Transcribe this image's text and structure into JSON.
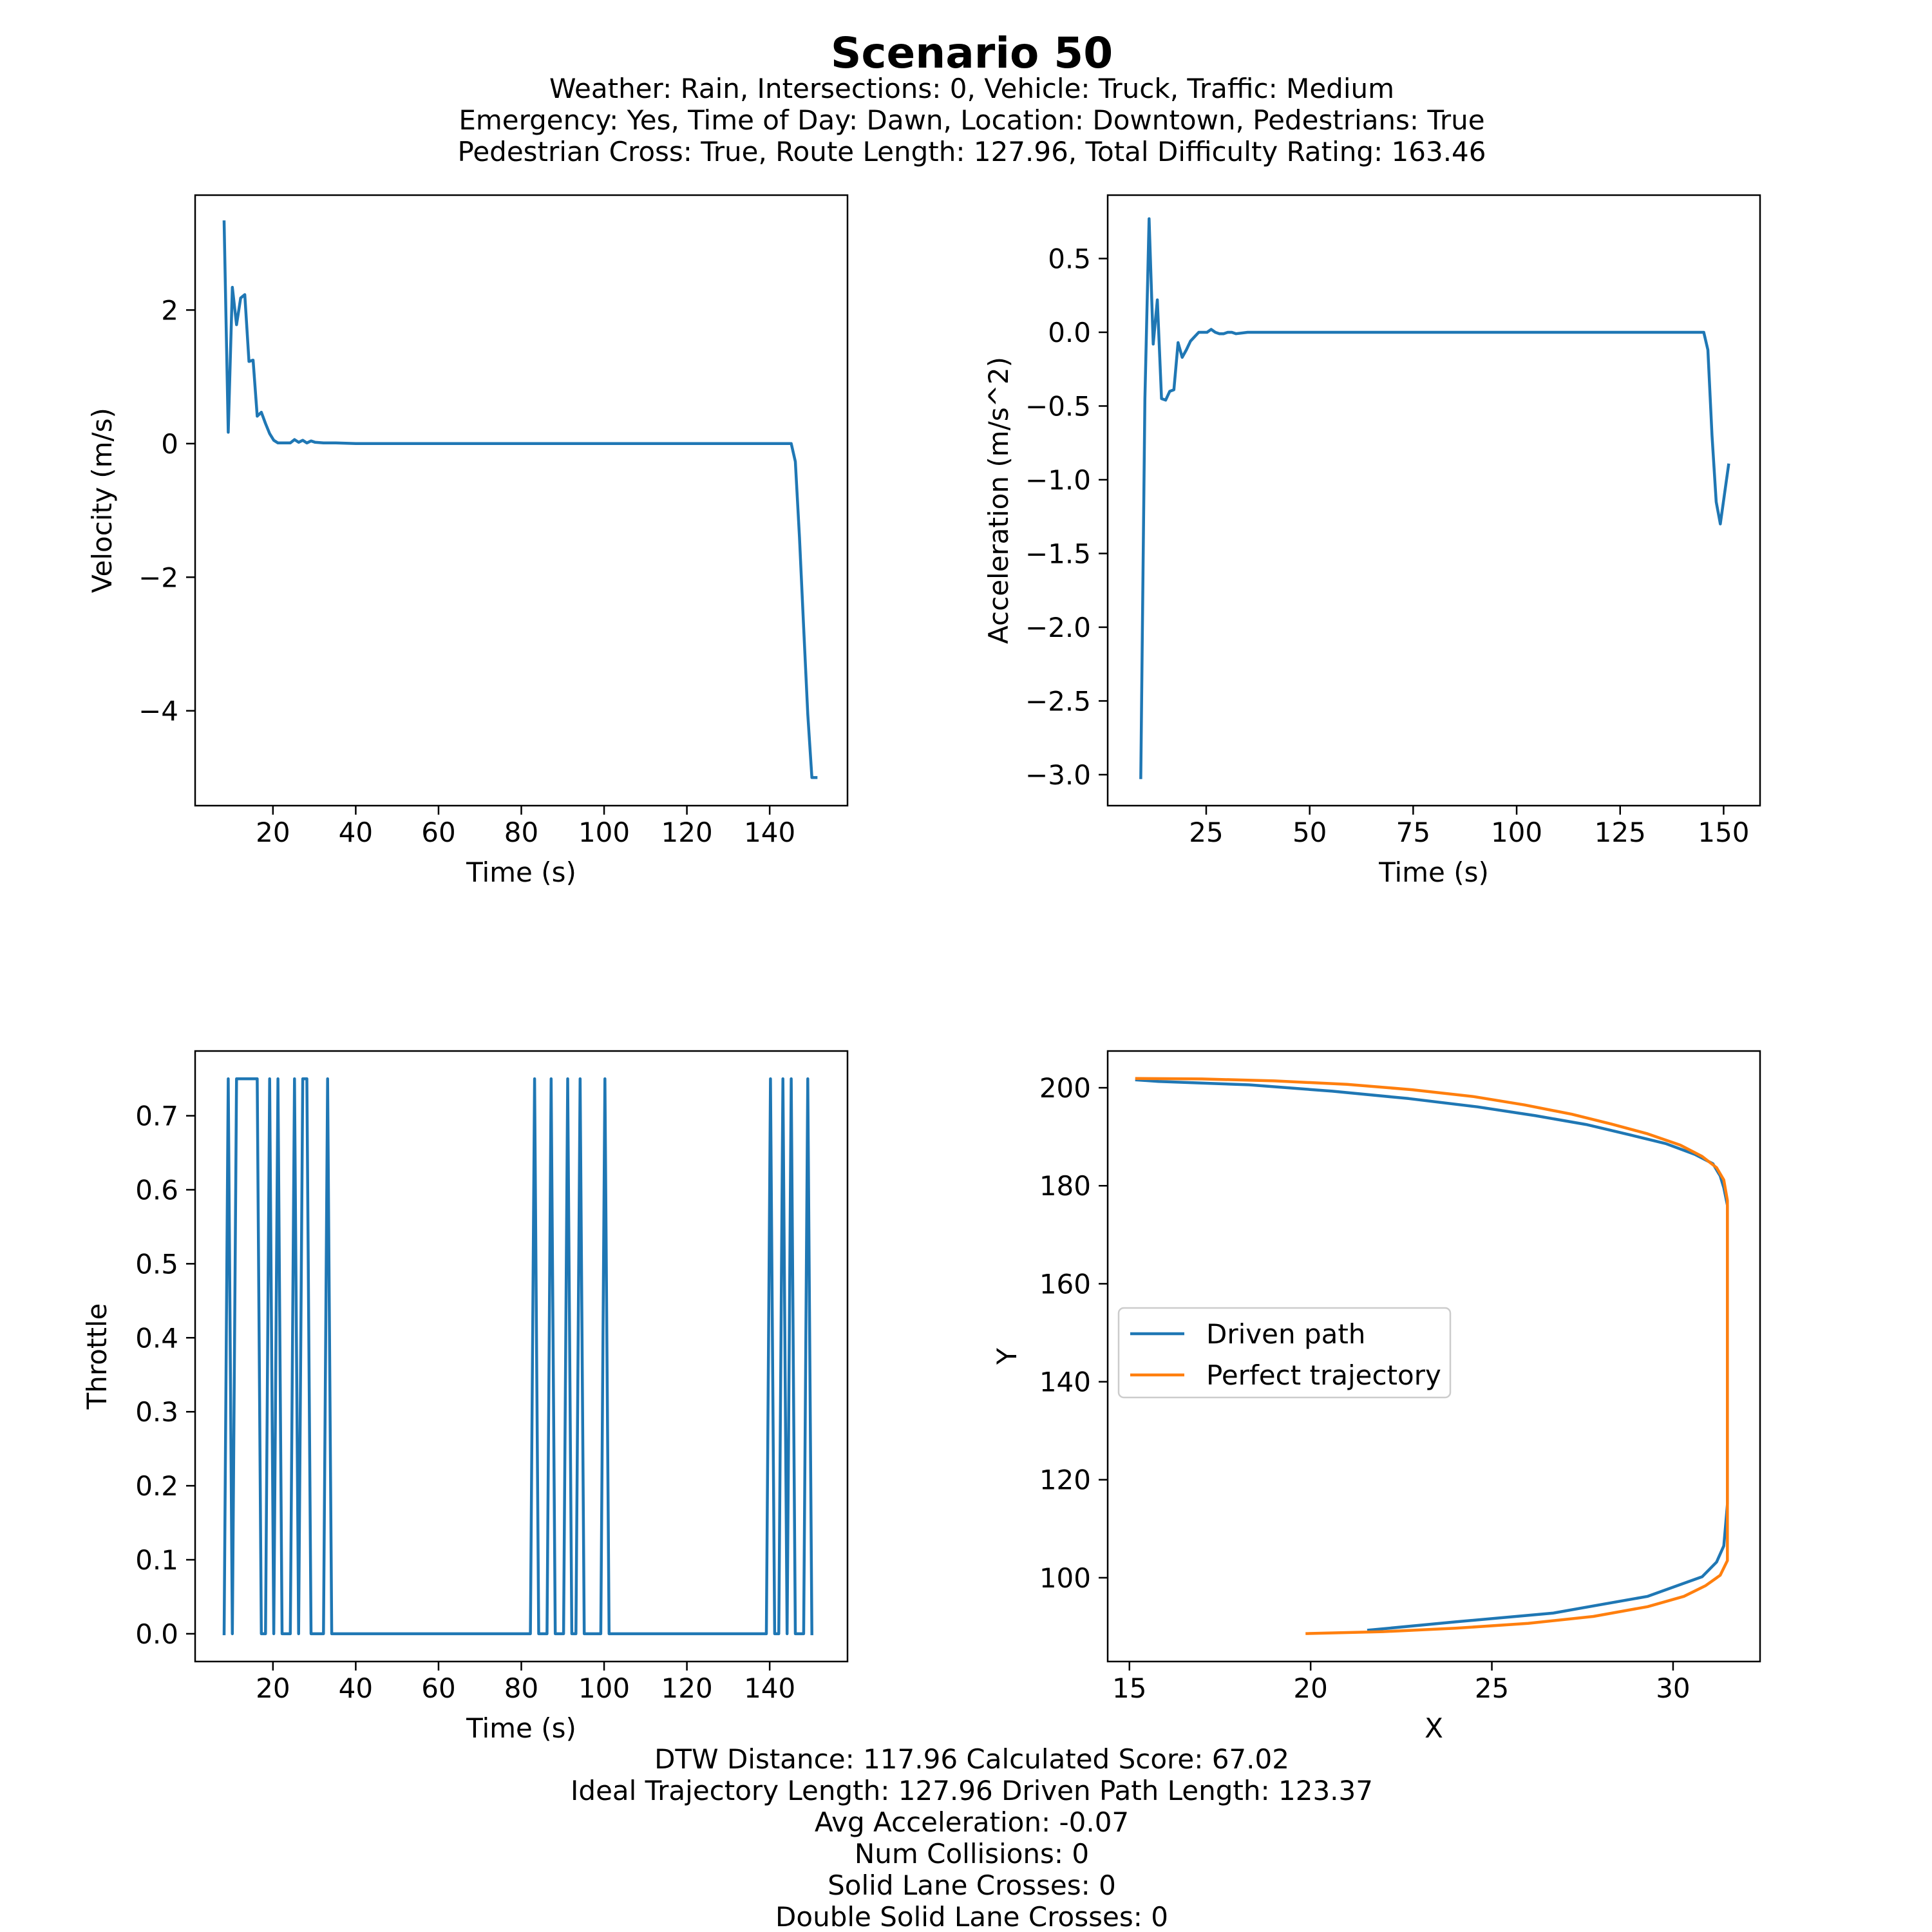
{
  "figure": {
    "title": "Scenario 50",
    "subtitle_lines": [
      "Weather: Rain, Intersections: 0, Vehicle: Truck, Traffic: Medium",
      "Emergency: Yes, Time of Day: Dawn, Location: Downtown, Pedestrians: True",
      "Pedestrian Cross: True, Route Length: 127.96, Total Difficulty Rating: 163.46"
    ],
    "footer_lines": [
      "DTW Distance: 117.96  Calculated Score: 67.02",
      "Ideal Trajectory Length: 127.96   Driven Path Length: 123.37",
      "Avg Acceleration: -0.07",
      "Num Collisions: 0",
      "Solid Lane Crosses: 0",
      "Double Solid Lane Crosses: 0"
    ]
  },
  "colors": {
    "blue": "#1f77b4",
    "orange": "#ff7f0e"
  },
  "chart_data": [
    {
      "id": "velocity",
      "type": "line",
      "xlabel": "Time (s)",
      "ylabel": "Velocity (m/s)",
      "xlim": [
        1.2,
        158.8
      ],
      "ylim": [
        -5.42,
        3.72
      ],
      "xticks": [
        20,
        40,
        60,
        80,
        100,
        120,
        140
      ],
      "xticklabels": [
        "20",
        "40",
        "60",
        "80",
        "100",
        "120",
        "140"
      ],
      "yticks": [
        2,
        0,
        -2,
        -4
      ],
      "yticklabels": [
        "2",
        "0",
        "−2",
        "−4"
      ],
      "grid": false,
      "series": [
        {
          "color": "#1f77b4",
          "x": [
            8.2,
            9.2,
            10.2,
            11.2,
            12.2,
            13.2,
            14.2,
            15.2,
            16.2,
            17.2,
            18.2,
            19.2,
            20.2,
            21.2,
            22.2,
            24.2,
            25.2,
            26.2,
            27.2,
            28.2,
            29.2,
            30.2,
            32.2,
            35.2,
            40,
            60,
            80,
            100,
            120,
            140,
            145.2,
            146.2,
            147.2,
            148.2,
            149.2,
            150.2,
            151.2
          ],
          "y": [
            3.32,
            0.17,
            2.34,
            1.78,
            2.18,
            2.23,
            1.23,
            1.25,
            0.41,
            0.47,
            0.3,
            0.15,
            0.05,
            0.01,
            0.01,
            0.01,
            0.06,
            0.02,
            0.05,
            0.01,
            0.04,
            0.02,
            0.01,
            0.01,
            0.0,
            0.0,
            0.0,
            0.0,
            0.0,
            0.0,
            0.0,
            -0.27,
            -1.4,
            -2.75,
            -4.05,
            -5.0,
            -5.0
          ]
        }
      ]
    },
    {
      "id": "acceleration",
      "type": "line",
      "xlabel": "Time (s)",
      "ylabel": "Acceleration (m/s^2)",
      "xlim": [
        1.2,
        158.8
      ],
      "ylim": [
        -3.21,
        0.93
      ],
      "xticks": [
        25,
        50,
        75,
        100,
        125,
        150
      ],
      "xticklabels": [
        "25",
        "50",
        "75",
        "100",
        "125",
        "150"
      ],
      "yticks": [
        0.5,
        0.0,
        -0.5,
        -1.0,
        -1.5,
        -2.0,
        -2.5,
        -3.0
      ],
      "yticklabels": [
        "0.5",
        "0.0",
        "−0.5",
        "−1.0",
        "−1.5",
        "−2.0",
        "−2.5",
        "−3.0"
      ],
      "grid": false,
      "series": [
        {
          "color": "#1f77b4",
          "x": [
            9.2,
            10.2,
            11.2,
            12.2,
            13.2,
            14.2,
            15.2,
            16.2,
            17.2,
            18.2,
            19.2,
            20.2,
            21.2,
            22.2,
            23.2,
            24.2,
            25.2,
            26.2,
            27.2,
            28.2,
            29.2,
            30.2,
            31.2,
            32.2,
            35,
            60,
            90,
            120,
            140,
            144.2,
            145.2,
            146.2,
            147.2,
            148.2,
            149.2,
            150.2,
            151.2
          ],
          "y": [
            -3.02,
            -0.45,
            0.77,
            -0.08,
            0.22,
            -0.45,
            -0.46,
            -0.4,
            -0.39,
            -0.07,
            -0.17,
            -0.12,
            -0.06,
            -0.03,
            0.0,
            0.0,
            0.0,
            0.02,
            0.0,
            -0.01,
            -0.01,
            0.0,
            0.0,
            -0.01,
            0.0,
            0.0,
            0.0,
            0.0,
            0.0,
            0.0,
            0.0,
            -0.12,
            -0.7,
            -1.15,
            -1.3,
            -1.1,
            -0.9
          ]
        }
      ]
    },
    {
      "id": "throttle",
      "type": "line",
      "xlabel": "Time (s)",
      "ylabel": "Throttle",
      "xlim": [
        1.2,
        158.8
      ],
      "ylim": [
        -0.0375,
        0.7875
      ],
      "xticks": [
        20,
        40,
        60,
        80,
        100,
        120,
        140
      ],
      "xticklabels": [
        "20",
        "40",
        "60",
        "80",
        "100",
        "120",
        "140"
      ],
      "yticks": [
        0.7,
        0.6,
        0.5,
        0.4,
        0.3,
        0.2,
        0.1,
        0.0
      ],
      "yticklabels": [
        "0.7",
        "0.6",
        "0.5",
        "0.4",
        "0.3",
        "0.2",
        "0.1",
        "0.0"
      ],
      "grid": false,
      "series": [
        {
          "color": "#1f77b4",
          "x": [
            8.2,
            9.2,
            10.2,
            11.2,
            16.2,
            17.2,
            18.2,
            19.2,
            20.2,
            21.2,
            22.2,
            24.2,
            25.2,
            26.2,
            27.2,
            28.2,
            29.2,
            30.2,
            32.2,
            33.2,
            34.2,
            82.2,
            83.2,
            84.2,
            86.2,
            87.2,
            88.2,
            90.2,
            91.2,
            92.2,
            93.2,
            94.2,
            95.2,
            96.2,
            97.2,
            99.2,
            100.2,
            101.2,
            139.2,
            140.2,
            141.2,
            142.2,
            143.2,
            144.2,
            145.2,
            146.2,
            148.2,
            149.2,
            150.2
          ],
          "y": [
            0.0,
            0.75,
            0.0,
            0.75,
            0.75,
            0.0,
            0.0,
            0.75,
            0.0,
            0.75,
            0.0,
            0.0,
            0.75,
            0.0,
            0.75,
            0.75,
            0.0,
            0.0,
            0.0,
            0.75,
            0.0,
            0.0,
            0.75,
            0.0,
            0.0,
            0.75,
            0.0,
            0.0,
            0.75,
            0.0,
            0.0,
            0.75,
            0.0,
            0.0,
            0.0,
            0.0,
            0.75,
            0.0,
            0.0,
            0.75,
            0.0,
            0.0,
            0.75,
            0.0,
            0.75,
            0.0,
            0.0,
            0.75,
            0.0
          ]
        }
      ]
    },
    {
      "id": "trajectory",
      "type": "line",
      "xlabel": "X",
      "ylabel": "Y",
      "xlim": [
        14.4,
        32.4
      ],
      "ylim": [
        82.9,
        207.5
      ],
      "xticks": [
        15,
        20,
        25,
        30
      ],
      "xticklabels": [
        "15",
        "20",
        "25",
        "30"
      ],
      "yticks": [
        200,
        180,
        160,
        140,
        120,
        100
      ],
      "yticklabels": [
        "200",
        "180",
        "160",
        "140",
        "120",
        "100"
      ],
      "grid": false,
      "legend": "center-left",
      "series": [
        {
          "name": "Driven path",
          "color": "#1f77b4",
          "x": [
            21.6,
            24.0,
            26.7,
            28.0,
            29.3,
            30.2,
            30.8,
            31.2,
            31.4,
            31.5,
            31.5,
            31.5,
            31.5,
            31.5,
            31.4,
            31.3,
            31.1,
            30.6,
            29.8,
            28.8,
            27.6,
            26.2,
            24.6,
            22.7,
            20.6,
            18.3,
            15.8,
            15.2
          ],
          "y": [
            89.3,
            91.0,
            92.8,
            94.5,
            96.2,
            98.6,
            100.2,
            103.2,
            106.5,
            115.0,
            140.0,
            160.0,
            170.0,
            176.0,
            179.6,
            182.0,
            184.5,
            186.4,
            188.6,
            190.4,
            192.5,
            194.3,
            196.1,
            197.8,
            199.3,
            200.6,
            201.3,
            201.6
          ]
        },
        {
          "name": "Perfect trajectory",
          "color": "#ff7f0e",
          "x": [
            19.9,
            22.0,
            24.0,
            26.0,
            27.8,
            29.3,
            30.3,
            30.9,
            31.3,
            31.5,
            31.5,
            31.5,
            31.5,
            31.5,
            31.4,
            31.2,
            30.8,
            30.2,
            29.3,
            28.3,
            27.2,
            25.9,
            24.5,
            22.8,
            21.0,
            19.0,
            17.0,
            15.2
          ],
          "y": [
            88.6,
            89.0,
            89.7,
            90.7,
            92.1,
            94.1,
            96.2,
            98.4,
            100.5,
            103.5,
            115.0,
            140.0,
            165.0,
            177.0,
            181.2,
            183.7,
            186.0,
            188.3,
            190.6,
            192.6,
            194.6,
            196.5,
            198.2,
            199.6,
            200.7,
            201.4,
            201.8,
            201.9
          ]
        }
      ]
    }
  ]
}
